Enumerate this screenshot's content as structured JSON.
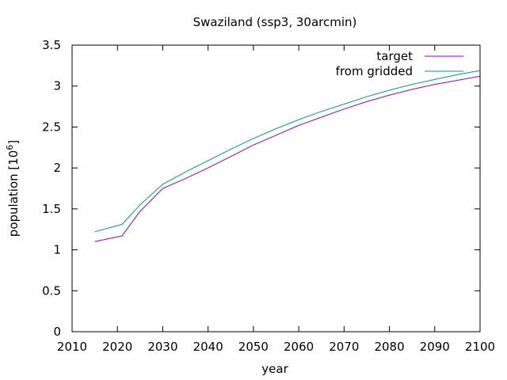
{
  "chart_data": {
    "type": "line",
    "title": "Swaziland (ssp3, 30arcmin)",
    "xlabel": "year",
    "ylabel": "population [10",
    "ylabel_sup": "6",
    "ylabel_suffix": "]",
    "xlim": [
      2010,
      2100
    ],
    "ylim": [
      0,
      3.5
    ],
    "xticks": [
      2010,
      2020,
      2030,
      2040,
      2050,
      2060,
      2070,
      2080,
      2090,
      2100
    ],
    "yticks": [
      0,
      0.5,
      1,
      1.5,
      2,
      2.5,
      3,
      3.5
    ],
    "ytick_labels": [
      "0",
      "0.5",
      "1",
      "1.5",
      "2",
      "2.5",
      "3",
      "3.5"
    ],
    "grid": false,
    "legend_position": "top-right",
    "series": [
      {
        "name": "target",
        "color": "#9400d3",
        "x": [
          2015,
          2021,
          2025,
          2030,
          2035,
          2040,
          2045,
          2050,
          2055,
          2060,
          2065,
          2070,
          2075,
          2080,
          2085,
          2090,
          2095,
          2100
        ],
        "y": [
          1.1,
          1.17,
          1.47,
          1.75,
          1.87,
          2.0,
          2.14,
          2.28,
          2.4,
          2.52,
          2.62,
          2.72,
          2.81,
          2.89,
          2.96,
          3.02,
          3.07,
          3.12
        ]
      },
      {
        "name": "from gridded",
        "color": "#009e73",
        "x": [
          2015,
          2021,
          2025,
          2030,
          2035,
          2040,
          2045,
          2050,
          2055,
          2060,
          2065,
          2070,
          2075,
          2080,
          2085,
          2090,
          2095,
          2100
        ],
        "y": [
          1.22,
          1.31,
          1.55,
          1.8,
          1.95,
          2.09,
          2.23,
          2.36,
          2.48,
          2.59,
          2.69,
          2.78,
          2.87,
          2.95,
          3.02,
          3.08,
          3.14,
          3.19
        ]
      }
    ]
  }
}
